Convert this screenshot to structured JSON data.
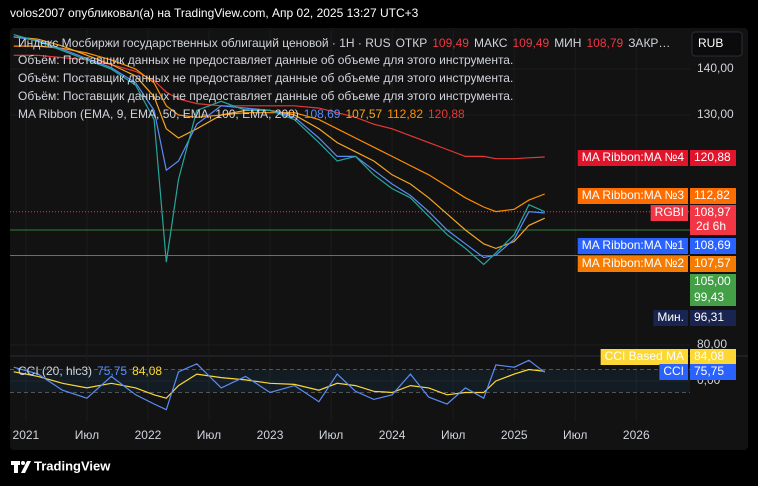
{
  "header": {
    "author_line": "volos2007 опубликовал(а) на TradingView.com, Апр 02, 2025 13:27 UTC+3"
  },
  "footer": {
    "brand": "TradingView"
  },
  "currency": "RUB",
  "chart_data": [
    {
      "type": "line",
      "title": "Индекс Мосбиржи государственных облигаций ценовой · 1Н · RUS",
      "ohlc": [
        {
          "label": "ОТКР",
          "text": "109,49"
        },
        {
          "label": "МАКС",
          "text": "109,49"
        },
        {
          "label": "МИН",
          "text": "108,79"
        }
      ],
      "ohlc_cut": "ЗАКР…",
      "volume_notes": [
        "Объём: Поставщик данных не предоставляет данные об объеме для этого инструмента.",
        "Объём: Поставщик данных не предоставляет данные об объеме для этого инструмента.",
        "Объём: Поставщик данных не предоставляет данные об объеме для этого инструмента."
      ],
      "indicator": "MA Ribbon (EMA, 9, EMA, 50, EMA, 100, EMA, 200)",
      "x": [
        2020.9,
        2021.1,
        2021.3,
        2021.5,
        2021.7,
        2021.9,
        2022.05,
        2022.15,
        2022.25,
        2022.4,
        2022.6,
        2022.8,
        2023.0,
        2023.2,
        2023.4,
        2023.55,
        2023.7,
        2023.85,
        2024.0,
        2024.15,
        2024.3,
        2024.45,
        2024.6,
        2024.75,
        2024.85,
        2025.0,
        2025.12,
        2025.25
      ],
      "series": [
        {
          "name": "RGBI",
          "color": "#26a69a",
          "values": [
            147.5,
            146,
            144,
            142,
            140,
            136.5,
            129,
            98,
            116,
            131,
            133,
            131,
            131,
            129,
            124,
            120,
            121,
            117,
            114,
            112,
            108,
            104,
            101,
            97.5,
            100,
            104,
            110.5,
            108.97
          ],
          "last_label": "108,97",
          "countdown": "2d 6h",
          "label_color": "#f23645"
        },
        {
          "name": "MA Ribbon:MA №1",
          "color": "#5b8cf6",
          "values": [
            147,
            146.2,
            144.3,
            142.3,
            140.3,
            137,
            131,
            118,
            120,
            128,
            132,
            131.5,
            131,
            129.5,
            125,
            121,
            121,
            118,
            115,
            112.5,
            109,
            105,
            102,
            99,
            99.5,
            103,
            109,
            108.69
          ],
          "last_label": "108,69",
          "label_color": "#2962ff"
        },
        {
          "name": "MA Ribbon:MA №2",
          "color": "#f5a623",
          "values": [
            147,
            146.5,
            145,
            143,
            141,
            138.5,
            134,
            127,
            125,
            127,
            130,
            131,
            131,
            130,
            127,
            124,
            122,
            120,
            117,
            115,
            112,
            108.5,
            105,
            102,
            101,
            102.5,
            106,
            107.57
          ],
          "last_label": "107,57",
          "label_color": "#f57c00"
        },
        {
          "name": "MA Ribbon:MA №3",
          "color": "#ff8f00",
          "values": [
            145,
            145,
            144.5,
            143.5,
            142,
            140,
            137,
            132,
            130,
            129.5,
            130,
            130.5,
            130.5,
            130.5,
            129,
            127,
            125,
            123,
            121,
            119,
            117,
            114.5,
            112,
            110,
            109,
            109.5,
            111.5,
            112.82
          ],
          "last_label": "112,82",
          "label_color": "#ff6d00"
        },
        {
          "name": "MA Ribbon:MA №4",
          "color": "#e53935",
          "values": [
            143,
            143,
            142.5,
            142,
            141,
            139.5,
            137.5,
            135,
            133.5,
            132.5,
            132,
            132,
            132,
            132,
            131.5,
            130.5,
            129.5,
            128,
            127,
            125.5,
            124,
            122.5,
            121,
            121,
            120.5,
            120.5,
            120.7,
            120.88
          ],
          "last_label": "120,88",
          "label_color": "#e0152b"
        }
      ],
      "levels": [
        {
          "value": 105,
          "label": "105,00",
          "color": "#43a047"
        },
        {
          "value": 99.43,
          "label": "99,43",
          "color": "#43a047"
        }
      ],
      "min": {
        "label": "Мин.",
        "value": 96.31,
        "text": "96,31"
      },
      "xlim": [
        2020.87,
        2026.44
      ],
      "xticks": [
        2021,
        {
          "value": 2021.5,
          "label": "Июл"
        },
        {
          "value": 2022,
          "label": "2022"
        },
        {
          "value": 2022.5,
          "label": "Июл"
        },
        {
          "value": 2023,
          "label": "2023"
        },
        {
          "value": 2023.5,
          "label": "Июл"
        },
        {
          "value": 2024,
          "label": "2024"
        },
        {
          "value": 2024.5,
          "label": "Июл"
        },
        {
          "value": 2025,
          "label": "2025"
        },
        {
          "value": 2025.5,
          "label": "Июл"
        },
        {
          "value": 2026,
          "label": "2026"
        }
      ],
      "ylim": [
        77.8,
        148.5
      ],
      "yticks": [
        {
          "value": 80,
          "label": "80,00"
        },
        {
          "value": 130,
          "label": "130,00"
        },
        {
          "value": 140,
          "label": "140,00"
        }
      ]
    },
    {
      "type": "line",
      "title": "CCI (20, hlc3)",
      "x": [
        2020.9,
        2021.1,
        2021.3,
        2021.5,
        2021.7,
        2021.9,
        2022.05,
        2022.15,
        2022.25,
        2022.4,
        2022.6,
        2022.8,
        2023.0,
        2023.2,
        2023.4,
        2023.55,
        2023.7,
        2023.85,
        2024.0,
        2024.15,
        2024.3,
        2024.45,
        2024.6,
        2024.75,
        2024.85,
        2025.0,
        2025.12,
        2025.25
      ],
      "series": [
        {
          "name": "CCI",
          "color": "#5b8cf6",
          "values": [
            120,
            60,
            -80,
            -150,
            40,
            -120,
            -200,
            -250,
            80,
            150,
            -60,
            40,
            -100,
            -40,
            -180,
            60,
            -90,
            -160,
            -120,
            60,
            -140,
            -200,
            -60,
            -150,
            140,
            120,
            180,
            75.75
          ],
          "last_label": "75,75",
          "label_color": "#2962ff"
        },
        {
          "name": "CCI Based MA",
          "color": "#fdd835",
          "values": [
            80,
            40,
            -20,
            -60,
            -20,
            -60,
            -120,
            -150,
            -40,
            60,
            30,
            10,
            -20,
            -30,
            -80,
            -20,
            -40,
            -90,
            -100,
            -40,
            -60,
            -120,
            -100,
            -100,
            0,
            60,
            100,
            84.08
          ],
          "last_label": "84,08",
          "label_color": "#fdd835"
        }
      ],
      "band": [
        -100,
        100
      ],
      "ylim": [
        -357,
        209
      ],
      "yticks": [
        {
          "value": 0,
          "label": "0,00"
        }
      ]
    }
  ]
}
